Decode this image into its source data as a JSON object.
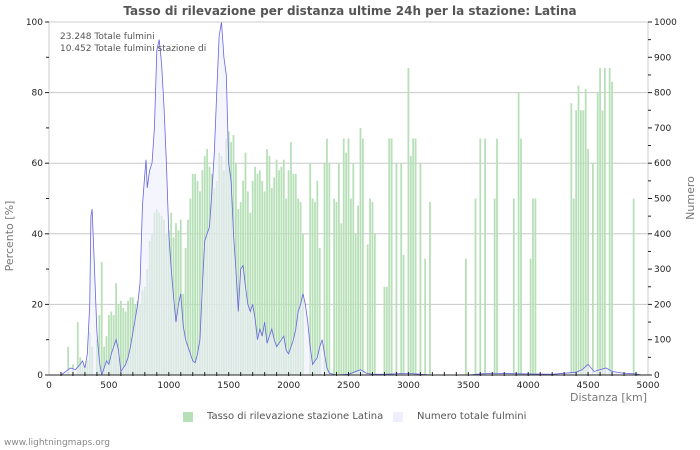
{
  "title": "Tasso di rilevazione per distanza ultime 24h per la stazione: Latina",
  "info": {
    "total_strikes": "23.248 Totale fulmini",
    "station_strikes": "10.452 Totale fulmini stazione di"
  },
  "legend": {
    "series1": "Tasso di rilevazione stazione Latina",
    "series2": "Numero totale fulmini"
  },
  "footer": "www.lightningmaps.org",
  "colors": {
    "bars": "#b8e0b8",
    "line": "#6666dd",
    "fill": "#eeeefc",
    "grid": "#c8c8c8"
  },
  "chart_data": {
    "type": "bar",
    "title": "Tasso di rilevazione per distanza ultime 24h per la stazione: Latina",
    "xlabel": "Distanza   [km]",
    "ylabel": "Percento   [%]",
    "ylabel_right": "Numero",
    "xlim": [
      0,
      5000
    ],
    "ylim": [
      0,
      100
    ],
    "ylim_right": [
      0,
      1000
    ],
    "x_ticks": [
      "0",
      "500",
      "1000",
      "1500",
      "2000",
      "2500",
      "3000",
      "3500",
      "4000",
      "4500",
      "5000"
    ],
    "y_ticks": [
      "0",
      "20",
      "40",
      "60",
      "80",
      "100"
    ],
    "y_ticks_right": [
      "0",
      "100",
      "200",
      "300",
      "400",
      "500",
      "600",
      "700",
      "800",
      "900",
      "1000"
    ],
    "grid": true,
    "legend_position": "bottom",
    "series": [
      {
        "name": "Tasso di rilevazione stazione Latina",
        "type": "bar",
        "axis": "left",
        "bar_width_km": 20,
        "points": [
          [
            160,
            8
          ],
          [
            200,
            3
          ],
          [
            240,
            15
          ],
          [
            260,
            5
          ],
          [
            280,
            3
          ],
          [
            300,
            2
          ],
          [
            320,
            4
          ],
          [
            340,
            12
          ],
          [
            360,
            8
          ],
          [
            400,
            10
          ],
          [
            420,
            17
          ],
          [
            440,
            32
          ],
          [
            460,
            8
          ],
          [
            480,
            11
          ],
          [
            500,
            17
          ],
          [
            520,
            18
          ],
          [
            540,
            17
          ],
          [
            560,
            26
          ],
          [
            580,
            20
          ],
          [
            600,
            21
          ],
          [
            620,
            19
          ],
          [
            640,
            18
          ],
          [
            660,
            21
          ],
          [
            680,
            22
          ],
          [
            700,
            22
          ],
          [
            720,
            20
          ],
          [
            740,
            21
          ],
          [
            760,
            20
          ],
          [
            780,
            24
          ],
          [
            800,
            25
          ],
          [
            820,
            30
          ],
          [
            840,
            38
          ],
          [
            860,
            40
          ],
          [
            880,
            46
          ],
          [
            900,
            47
          ],
          [
            920,
            46
          ],
          [
            940,
            45
          ],
          [
            960,
            44
          ],
          [
            980,
            40
          ],
          [
            1000,
            41
          ],
          [
            1020,
            46
          ],
          [
            1040,
            39
          ],
          [
            1060,
            43
          ],
          [
            1080,
            41
          ],
          [
            1100,
            44
          ],
          [
            1120,
            23
          ],
          [
            1140,
            36
          ],
          [
            1160,
            44
          ],
          [
            1180,
            50
          ],
          [
            1200,
            57
          ],
          [
            1220,
            57
          ],
          [
            1240,
            55
          ],
          [
            1260,
            52
          ],
          [
            1280,
            58
          ],
          [
            1300,
            62
          ],
          [
            1320,
            64
          ],
          [
            1340,
            59
          ],
          [
            1360,
            57
          ],
          [
            1380,
            53
          ],
          [
            1400,
            55
          ],
          [
            1420,
            63
          ],
          [
            1440,
            62
          ],
          [
            1460,
            58
          ],
          [
            1480,
            67
          ],
          [
            1500,
            69
          ],
          [
            1520,
            66
          ],
          [
            1540,
            68
          ],
          [
            1560,
            60
          ],
          [
            1580,
            47
          ],
          [
            1600,
            49
          ],
          [
            1620,
            55
          ],
          [
            1640,
            63
          ],
          [
            1660,
            52
          ],
          [
            1680,
            46
          ],
          [
            1700,
            55
          ],
          [
            1720,
            59
          ],
          [
            1740,
            57
          ],
          [
            1760,
            58
          ],
          [
            1780,
            55
          ],
          [
            1800,
            52
          ],
          [
            1820,
            64
          ],
          [
            1840,
            62
          ],
          [
            1860,
            53
          ],
          [
            1880,
            56
          ],
          [
            1900,
            61
          ],
          [
            1920,
            58
          ],
          [
            1940,
            59
          ],
          [
            1960,
            61
          ],
          [
            1980,
            50
          ],
          [
            2000,
            58
          ],
          [
            2020,
            66
          ],
          [
            2040,
            57
          ],
          [
            2060,
            57
          ],
          [
            2080,
            50
          ],
          [
            2100,
            49
          ],
          [
            2120,
            40
          ],
          [
            2180,
            60
          ],
          [
            2200,
            50
          ],
          [
            2220,
            49
          ],
          [
            2240,
            55
          ],
          [
            2260,
            36
          ],
          [
            2300,
            60
          ],
          [
            2320,
            67
          ],
          [
            2340,
            60
          ],
          [
            2380,
            50
          ],
          [
            2400,
            49
          ],
          [
            2420,
            60
          ],
          [
            2440,
            43
          ],
          [
            2460,
            67
          ],
          [
            2480,
            63
          ],
          [
            2500,
            67
          ],
          [
            2520,
            50
          ],
          [
            2540,
            60
          ],
          [
            2560,
            40
          ],
          [
            2580,
            48
          ],
          [
            2600,
            70
          ],
          [
            2620,
            67
          ],
          [
            2660,
            37
          ],
          [
            2680,
            50
          ],
          [
            2700,
            49
          ],
          [
            2720,
            40
          ],
          [
            2800,
            25
          ],
          [
            2820,
            25
          ],
          [
            2840,
            67
          ],
          [
            2860,
            67
          ],
          [
            2900,
            60
          ],
          [
            2940,
            60
          ],
          [
            2960,
            34
          ],
          [
            3000,
            87
          ],
          [
            3020,
            62
          ],
          [
            3040,
            67
          ],
          [
            3060,
            67
          ],
          [
            3100,
            60
          ],
          [
            3140,
            33
          ],
          [
            3180,
            49
          ],
          [
            3480,
            33
          ],
          [
            3560,
            50
          ],
          [
            3600,
            67
          ],
          [
            3640,
            67
          ],
          [
            3720,
            50
          ],
          [
            3740,
            67
          ],
          [
            3880,
            50
          ],
          [
            3920,
            80
          ],
          [
            3940,
            67
          ],
          [
            4020,
            33
          ],
          [
            4040,
            50
          ],
          [
            4060,
            50
          ],
          [
            4360,
            77
          ],
          [
            4380,
            50
          ],
          [
            4400,
            75
          ],
          [
            4420,
            82
          ],
          [
            4440,
            75
          ],
          [
            4460,
            75
          ],
          [
            4480,
            81
          ],
          [
            4500,
            64
          ],
          [
            4540,
            60
          ],
          [
            4580,
            80
          ],
          [
            4600,
            87
          ],
          [
            4620,
            75
          ],
          [
            4640,
            87
          ],
          [
            4680,
            87
          ],
          [
            4700,
            83
          ],
          [
            4880,
            50
          ]
        ]
      },
      {
        "name": "Numero totale fulmini",
        "type": "area",
        "axis": "right",
        "points": [
          [
            100,
            0
          ],
          [
            140,
            10
          ],
          [
            180,
            20
          ],
          [
            220,
            15
          ],
          [
            260,
            30
          ],
          [
            280,
            40
          ],
          [
            300,
            20
          ],
          [
            320,
            60
          ],
          [
            340,
            200
          ],
          [
            350,
            450
          ],
          [
            360,
            470
          ],
          [
            380,
            300
          ],
          [
            400,
            120
          ],
          [
            420,
            40
          ],
          [
            440,
            0
          ],
          [
            460,
            20
          ],
          [
            480,
            40
          ],
          [
            500,
            30
          ],
          [
            520,
            60
          ],
          [
            540,
            80
          ],
          [
            560,
            100
          ],
          [
            580,
            70
          ],
          [
            600,
            10
          ],
          [
            620,
            20
          ],
          [
            640,
            30
          ],
          [
            660,
            50
          ],
          [
            680,
            80
          ],
          [
            700,
            120
          ],
          [
            720,
            160
          ],
          [
            740,
            200
          ],
          [
            760,
            260
          ],
          [
            780,
            480
          ],
          [
            800,
            570
          ],
          [
            810,
            610
          ],
          [
            820,
            530
          ],
          [
            840,
            580
          ],
          [
            860,
            600
          ],
          [
            880,
            700
          ],
          [
            900,
            920
          ],
          [
            920,
            950
          ],
          [
            940,
            880
          ],
          [
            960,
            760
          ],
          [
            980,
            600
          ],
          [
            1000,
            400
          ],
          [
            1020,
            300
          ],
          [
            1040,
            220
          ],
          [
            1060,
            150
          ],
          [
            1080,
            200
          ],
          [
            1100,
            230
          ],
          [
            1120,
            140
          ],
          [
            1140,
            100
          ],
          [
            1160,
            80
          ],
          [
            1180,
            60
          ],
          [
            1200,
            40
          ],
          [
            1220,
            35
          ],
          [
            1240,
            60
          ],
          [
            1260,
            100
          ],
          [
            1280,
            250
          ],
          [
            1300,
            380
          ],
          [
            1320,
            400
          ],
          [
            1340,
            420
          ],
          [
            1360,
            520
          ],
          [
            1380,
            630
          ],
          [
            1400,
            800
          ],
          [
            1420,
            960
          ],
          [
            1440,
            1000
          ],
          [
            1460,
            900
          ],
          [
            1480,
            850
          ],
          [
            1500,
            600
          ],
          [
            1520,
            550
          ],
          [
            1540,
            400
          ],
          [
            1560,
            300
          ],
          [
            1580,
            180
          ],
          [
            1600,
            300
          ],
          [
            1620,
            310
          ],
          [
            1640,
            250
          ],
          [
            1660,
            200
          ],
          [
            1680,
            180
          ],
          [
            1700,
            200
          ],
          [
            1720,
            160
          ],
          [
            1740,
            100
          ],
          [
            1760,
            130
          ],
          [
            1780,
            110
          ],
          [
            1800,
            150
          ],
          [
            1820,
            90
          ],
          [
            1840,
            110
          ],
          [
            1860,
            130
          ],
          [
            1880,
            100
          ],
          [
            1900,
            80
          ],
          [
            1920,
            90
          ],
          [
            1940,
            100
          ],
          [
            1960,
            110
          ],
          [
            1980,
            70
          ],
          [
            2000,
            60
          ],
          [
            2020,
            80
          ],
          [
            2040,
            100
          ],
          [
            2060,
            130
          ],
          [
            2080,
            180
          ],
          [
            2100,
            200
          ],
          [
            2120,
            230
          ],
          [
            2140,
            200
          ],
          [
            2160,
            150
          ],
          [
            2180,
            80
          ],
          [
            2200,
            30
          ],
          [
            2220,
            40
          ],
          [
            2240,
            50
          ],
          [
            2260,
            80
          ],
          [
            2280,
            100
          ],
          [
            2300,
            60
          ],
          [
            2320,
            20
          ],
          [
            2340,
            5
          ],
          [
            2400,
            0
          ],
          [
            2500,
            2
          ],
          [
            2600,
            15
          ],
          [
            2650,
            5
          ],
          [
            2700,
            2
          ],
          [
            2800,
            2
          ],
          [
            3000,
            5
          ],
          [
            3100,
            2
          ],
          [
            3200,
            0
          ],
          [
            3500,
            0
          ],
          [
            3600,
            3
          ],
          [
            3700,
            5
          ],
          [
            4000,
            3
          ],
          [
            4200,
            2
          ],
          [
            4400,
            8
          ],
          [
            4450,
            15
          ],
          [
            4500,
            30
          ],
          [
            4550,
            10
          ],
          [
            4600,
            15
          ],
          [
            4650,
            20
          ],
          [
            4700,
            10
          ],
          [
            4800,
            5
          ],
          [
            4900,
            3
          ],
          [
            4950,
            0
          ]
        ]
      }
    ]
  }
}
